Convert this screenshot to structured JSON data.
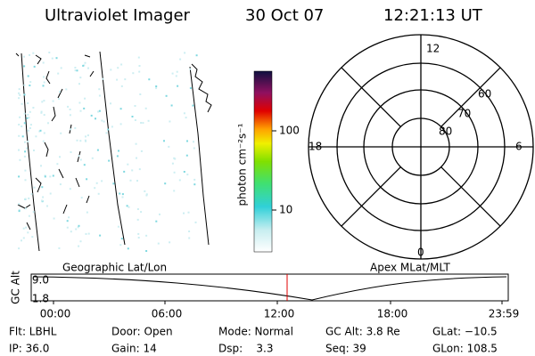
{
  "header": {
    "title": "Ultraviolet Imager",
    "date": "30 Oct 07",
    "time": "12:21:13 UT"
  },
  "colorbar": {
    "label": "photon cm⁻²s⁻¹",
    "ticks": [
      "100",
      "10"
    ]
  },
  "polar": {
    "mlt_labels": [
      "12",
      "18",
      "6",
      "0"
    ],
    "lat_labels": [
      "60",
      "70",
      "80"
    ]
  },
  "orbit": {
    "left_label": "Geographic Lat/Lon",
    "right_label": "Apex MLat/MLT",
    "y_label": "GC Alt",
    "y_ticks": [
      "9.0",
      "1.8"
    ],
    "x_ticks": [
      "00:00",
      "06:00",
      "12:00",
      "18:00",
      "23:59"
    ]
  },
  "footer": {
    "rows": [
      [
        "Flt: LBHL",
        "Door: Open",
        "Mode: Normal",
        "GC Alt: 3.8 Re",
        "GLat: −10.5"
      ],
      [
        "IP: 36.0",
        "Gain: 14",
        "Dsp:    3.3",
        "Seq: 39",
        "GLon: 108.5"
      ]
    ]
  }
}
